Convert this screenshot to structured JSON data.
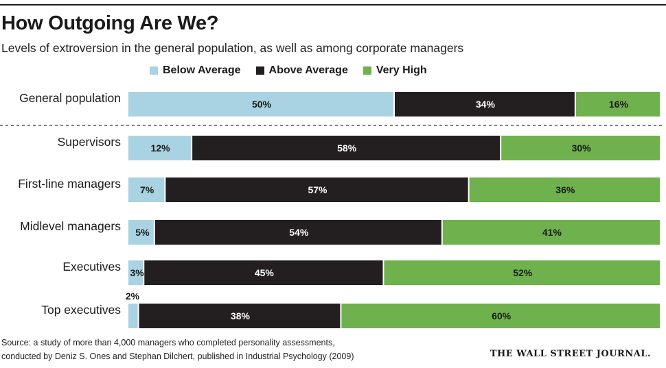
{
  "title": "How Outgoing Are We?",
  "subtitle": "Levels of extroversion in the general population, as well as among corporate managers",
  "source_line1": "Source: a study of more than 4,000 managers who completed personality assessments,",
  "source_line2": "conducted by Deniz S. Ones and Stephan Dilchert, published in Industrial Psychology (2009)",
  "publisher": "THE WALL STREET JOURNAL.",
  "chart_data": {
    "type": "bar",
    "orientation": "horizontal",
    "stacked": true,
    "title": "How Outgoing Are We?",
    "categories": [
      "General population",
      "Supervisors",
      "First-line managers",
      "Midlevel managers",
      "Executives",
      "Top executives"
    ],
    "series": [
      {
        "name": "Below Average",
        "color": "#a9d3e2",
        "label_color": "#1a1a1a",
        "values": [
          50,
          12,
          7,
          5,
          3,
          2
        ],
        "labels": [
          "50%",
          "12%",
          "7%",
          "5%",
          "3%",
          "2%"
        ]
      },
      {
        "name": "Above Average",
        "color": "#231f20",
        "label_color": "#ffffff",
        "values": [
          34,
          58,
          57,
          54,
          45,
          38
        ],
        "labels": [
          "34%",
          "58%",
          "57%",
          "54%",
          "45%",
          "38%"
        ]
      },
      {
        "name": "Very High",
        "color": "#6fb14c",
        "label_color": "#1a1a1a",
        "values": [
          16,
          30,
          36,
          41,
          52,
          60
        ],
        "labels": [
          "16%",
          "30%",
          "36%",
          "41%",
          "52%",
          "60%"
        ]
      }
    ],
    "xlim": [
      0,
      100
    ],
    "legend_position": "top",
    "divider_after_category": "General population"
  }
}
